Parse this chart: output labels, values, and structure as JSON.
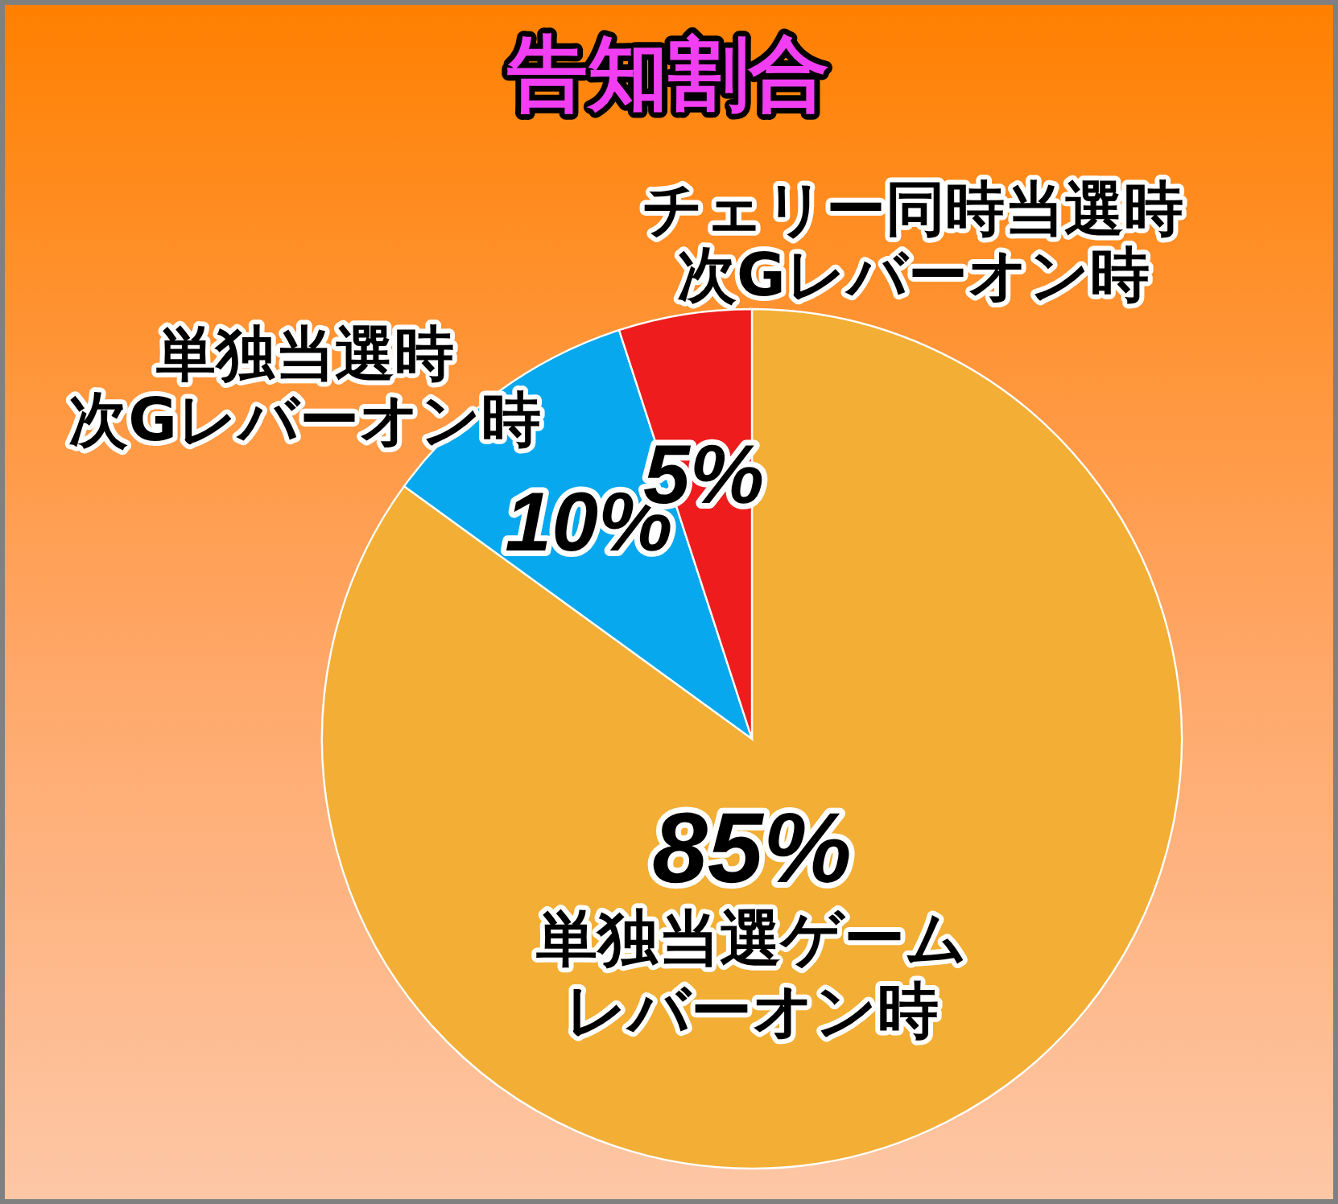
{
  "chart_data": {
    "type": "pie",
    "title": "告知割合",
    "categories": [
      "単独当選ゲームレバーオン時",
      "単独当選時次Gレバーオン時",
      "チェリー同時当選時次Gレバーオン時"
    ],
    "values": [
      85,
      10,
      5
    ],
    "colors": [
      "#f2ae35",
      "#08a8ee",
      "#ee1c1c"
    ],
    "value_labels": [
      "85%",
      "10%",
      "5%"
    ]
  }
}
